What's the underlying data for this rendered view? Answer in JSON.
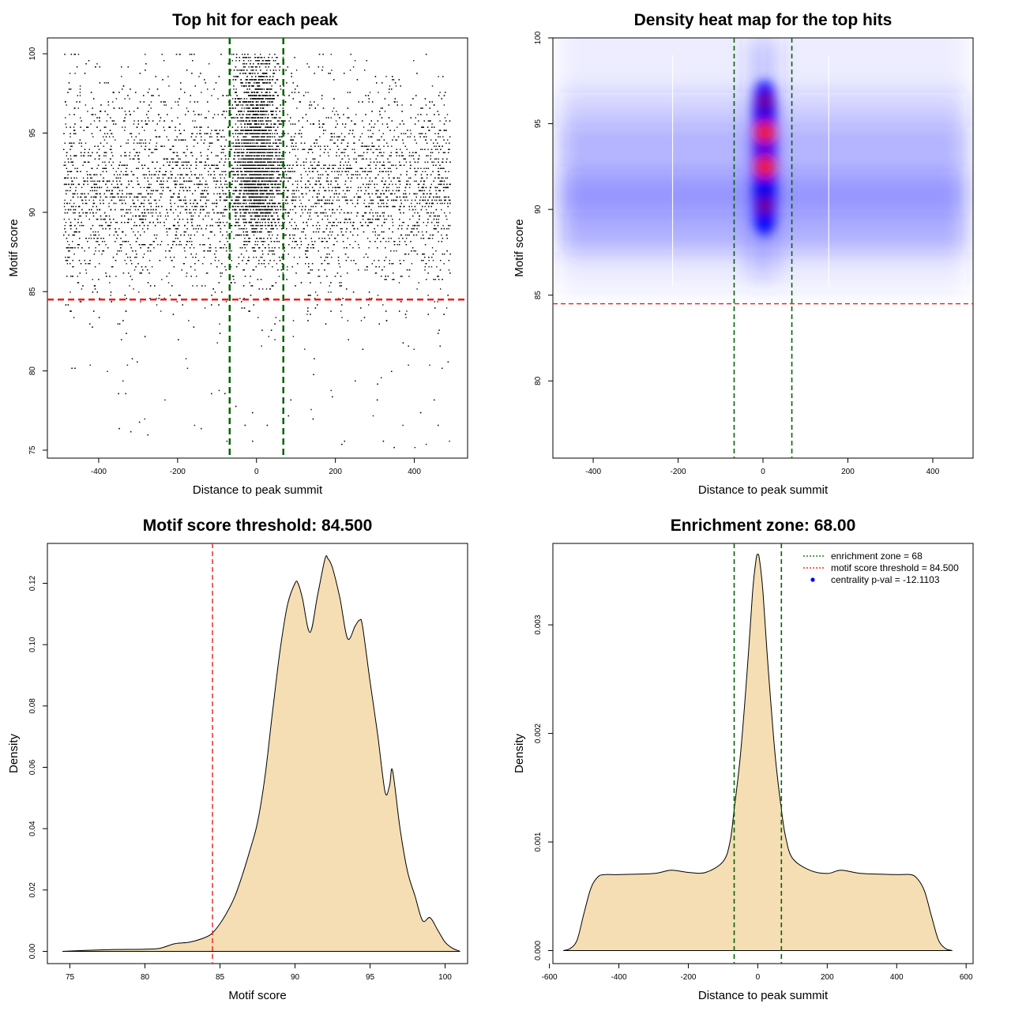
{
  "chart_data": [
    {
      "type": "scatter",
      "title": "Top hit for each peak",
      "xlabel": "Distance to peak summit",
      "ylabel": "Motif score",
      "xlim": [
        -530,
        535
      ],
      "ylim": [
        74.5,
        101
      ],
      "xticks": [
        -400,
        -200,
        0,
        200,
        400
      ],
      "yticks": [
        75,
        80,
        85,
        90,
        95,
        100
      ],
      "threshold": 84.5,
      "enrichment_zone": [
        -68,
        68
      ],
      "grid": false,
      "points_summary": "dense scatter, x from -490 to 490, y mostly 85-100, strong central column near x=0"
    },
    {
      "type": "heatmap",
      "title": "Density heat map for the top hits",
      "xlabel": "Distance to peak summit",
      "ylabel": "Motif score",
      "xlim": [
        -495,
        495
      ],
      "ylim": [
        75.5,
        100
      ],
      "xticks": [
        -400,
        -200,
        0,
        200,
        400
      ],
      "yticks": [
        80,
        85,
        90,
        95,
        100
      ],
      "threshold": 84.5,
      "enrichment_zone": [
        -68,
        68
      ],
      "hotspots": [
        {
          "x": 5,
          "y": 94.5,
          "level": "high"
        },
        {
          "x": 5,
          "y": 92.5,
          "level": "high"
        },
        {
          "x": 5,
          "y": 90.2,
          "level": "medium"
        },
        {
          "x": 5,
          "y": 96.3,
          "level": "medium"
        }
      ],
      "colors": {
        "low": "#ffffff",
        "mid": "#0000ff",
        "high": "#ff0000"
      }
    },
    {
      "type": "area",
      "title": "Motif score threshold: 84.500",
      "xlabel": "Motif score",
      "ylabel": "Density",
      "xlim": [
        73.5,
        101.5
      ],
      "ylim": [
        -0.004,
        0.133
      ],
      "xticks": [
        75,
        80,
        85,
        90,
        95,
        100
      ],
      "yticks": [
        0.0,
        0.02,
        0.04,
        0.06,
        0.08,
        0.1,
        0.12
      ],
      "ytick_labels": [
        "0.00",
        "0.02",
        "0.04",
        "0.06",
        "0.08",
        "0.10",
        "0.12"
      ],
      "threshold": 84.5,
      "x": [
        74.5,
        76,
        78,
        80,
        81,
        82,
        83,
        84,
        84.5,
        85,
        85.5,
        86,
        86.5,
        87,
        87.5,
        88,
        88.5,
        89,
        89.5,
        90,
        90.2,
        90.5,
        91,
        91.5,
        92,
        92.2,
        92.5,
        93,
        93.5,
        94,
        94.3,
        94.5,
        95,
        95.5,
        96,
        96.3,
        96.5,
        97,
        97.5,
        98,
        98.5,
        99,
        99.5,
        100,
        100.5,
        101
      ],
      "values": [
        0.0,
        0.0003,
        0.0006,
        0.0007,
        0.001,
        0.0025,
        0.003,
        0.0045,
        0.006,
        0.009,
        0.013,
        0.018,
        0.025,
        0.033,
        0.042,
        0.057,
        0.078,
        0.098,
        0.113,
        0.12,
        0.12,
        0.115,
        0.104,
        0.116,
        0.128,
        0.128,
        0.125,
        0.115,
        0.102,
        0.106,
        0.108,
        0.106,
        0.088,
        0.071,
        0.052,
        0.054,
        0.059,
        0.04,
        0.026,
        0.018,
        0.01,
        0.011,
        0.007,
        0.003,
        0.001,
        0.0
      ]
    },
    {
      "type": "area",
      "title": "Enrichment zone: 68.00",
      "xlabel": "Distance to peak summit",
      "ylabel": "Density",
      "xlim": [
        -590,
        620
      ],
      "ylim": [
        -0.00012,
        0.00375
      ],
      "xticks": [
        -600,
        -400,
        -200,
        0,
        200,
        400,
        600
      ],
      "yticks": [
        0.0,
        0.001,
        0.002,
        0.003
      ],
      "ytick_labels": [
        "0.000",
        "0.001",
        "0.002",
        "0.003"
      ],
      "enrichment_zone": [
        -68,
        68
      ],
      "x": [
        -560,
        -540,
        -520,
        -500,
        -480,
        -460,
        -440,
        -400,
        -300,
        -250,
        -200,
        -150,
        -100,
        -80,
        -68,
        -50,
        -30,
        -15,
        -5,
        0,
        5,
        15,
        30,
        50,
        68,
        80,
        100,
        150,
        200,
        240,
        300,
        400,
        440,
        460,
        480,
        500,
        520,
        540,
        560
      ],
      "values": [
        0.0,
        2e-05,
        0.0001,
        0.00035,
        0.00058,
        0.00068,
        0.0007,
        0.0007,
        0.00071,
        0.00074,
        0.00072,
        0.00072,
        0.00082,
        0.001,
        0.0013,
        0.0018,
        0.0026,
        0.0033,
        0.0036,
        0.00365,
        0.0036,
        0.0033,
        0.0026,
        0.0018,
        0.0013,
        0.00105,
        0.00085,
        0.00074,
        0.00071,
        0.00074,
        0.00071,
        0.0007,
        0.0007,
        0.00066,
        0.00055,
        0.00032,
        0.0001,
        2e-05,
        0.0
      ],
      "legend": {
        "position": "top-right",
        "entries": [
          {
            "label": "enrichment zone = 68",
            "color": "#006400",
            "style": "dotted-line"
          },
          {
            "label": "motif score threshold = 84.500",
            "color": "#ff0000",
            "style": "dotted-line"
          },
          {
            "label": "centrality p-val = -12.1103",
            "color": "#0000ff",
            "style": "point"
          }
        ]
      }
    }
  ]
}
